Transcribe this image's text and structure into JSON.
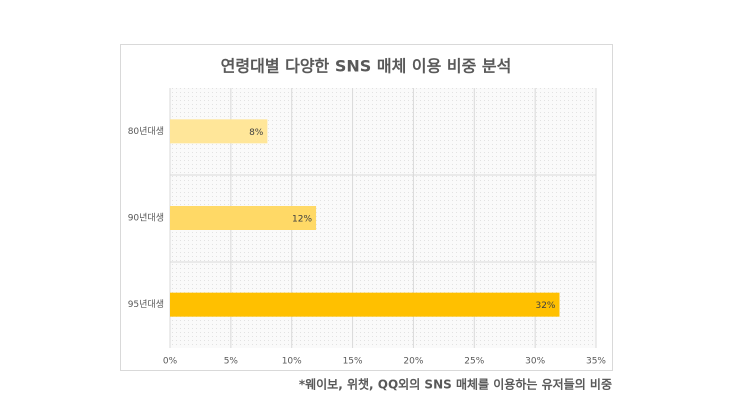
{
  "chart_data": {
    "type": "bar",
    "orientation": "horizontal",
    "title": "연령대별 다양한 SNS 매체 이용 비중 분석",
    "categories": [
      "80년대생",
      "90년대생",
      "95년대생"
    ],
    "values": [
      8,
      12,
      32
    ],
    "value_labels": [
      "8%",
      "12%",
      "32%"
    ],
    "colors": [
      "#FFE699",
      "#FFD966",
      "#FFC000"
    ],
    "xlim": [
      0,
      35
    ],
    "xticks": [
      {
        "value": 0,
        "label": "0%"
      },
      {
        "value": 5,
        "label": "5%"
      },
      {
        "value": 10,
        "label": "10%"
      },
      {
        "value": 15,
        "label": "15%"
      },
      {
        "value": 20,
        "label": "20%"
      },
      {
        "value": 25,
        "label": "25%"
      },
      {
        "value": 30,
        "label": "30%"
      },
      {
        "value": 35,
        "label": "35%"
      }
    ],
    "grid": true,
    "footnote": "*웨이보, 위챗, QQ외의 SNS 매체를 이용하는 유저들의 비중"
  }
}
